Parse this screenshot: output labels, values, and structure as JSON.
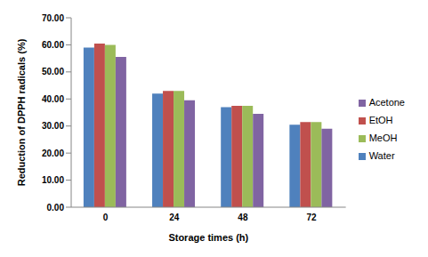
{
  "chart_data": {
    "type": "bar",
    "x_label": "Storage times (h)",
    "y_label": "Reduction of DPPH radicals (%)",
    "categories": [
      "0",
      "24",
      "48",
      "72"
    ],
    "series": [
      {
        "name": "Water",
        "color": "#4f81bd",
        "values": [
          59,
          42,
          37,
          30.5
        ]
      },
      {
        "name": "EtOH",
        "color": "#c0504d",
        "values": [
          60.5,
          43,
          37.5,
          31.5
        ]
      },
      {
        "name": "MeOH",
        "color": "#9bbb59",
        "values": [
          60,
          43,
          37.5,
          31.5
        ]
      },
      {
        "name": "Acetone",
        "color": "#8064a2",
        "values": [
          55.5,
          39.5,
          34.5,
          29
        ]
      }
    ],
    "ylim": [
      0,
      70
    ],
    "yticks": [
      {
        "value": 0,
        "label": "0.00"
      },
      {
        "value": 10,
        "label": "10.00"
      },
      {
        "value": 20,
        "label": "20.00"
      },
      {
        "value": 30,
        "label": "30.00"
      },
      {
        "value": 40,
        "label": "40.00"
      },
      {
        "value": 50,
        "label": "50.00"
      },
      {
        "value": 60,
        "label": "60.00"
      },
      {
        "value": 70,
        "label": "70.00"
      }
    ],
    "grid": false,
    "legend": "right"
  }
}
